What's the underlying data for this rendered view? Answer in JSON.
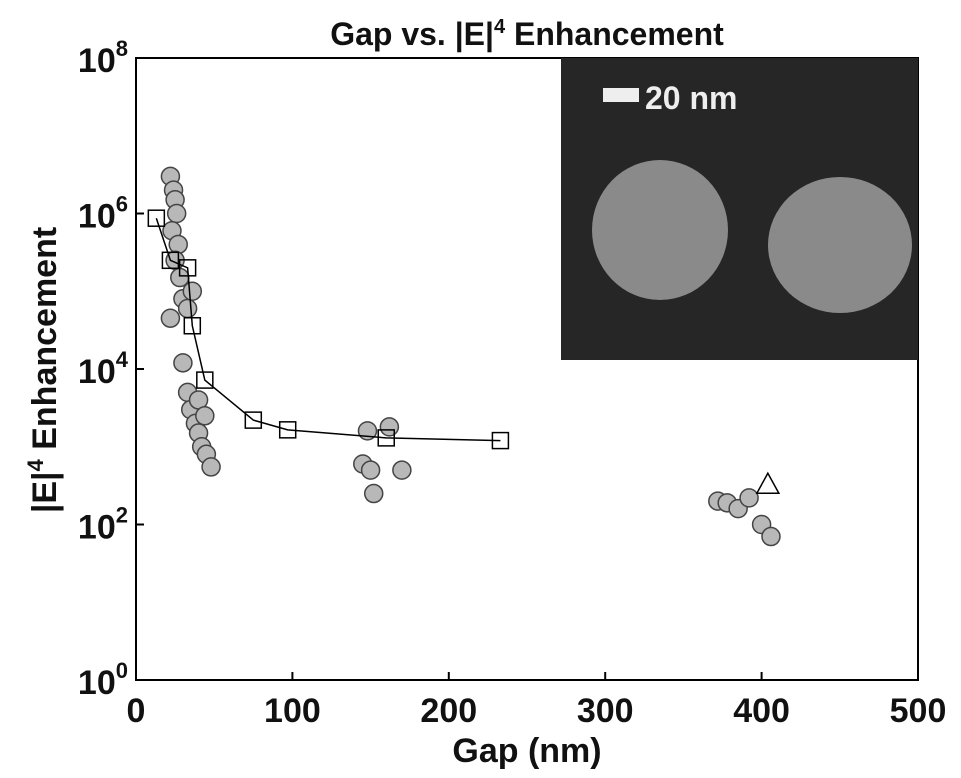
{
  "chart_data": {
    "type": "scatter",
    "title": {
      "main": "Gap vs. |E|",
      "sup": "4",
      "rest": " Enhancement"
    },
    "xlabel": "Gap (nm)",
    "ylabel": {
      "main": "|E|",
      "sup": "4",
      "rest": " Enhancement"
    },
    "annotation": "20 nm",
    "xlim": [
      0,
      500
    ],
    "xticks": [
      0,
      100,
      200,
      300,
      400,
      500
    ],
    "ylim": [
      1,
      100000000
    ],
    "log_y": true,
    "yticks": [
      {
        "value": 1,
        "label": "10^0"
      },
      {
        "value": 100,
        "label": "10^2"
      },
      {
        "value": 10000,
        "label": "10^4"
      },
      {
        "value": 1000000,
        "label": "10^6"
      },
      {
        "value": 100000000,
        "label": "10^8"
      }
    ],
    "series": [
      {
        "marker": "circle",
        "color": "#b8b8b8",
        "line": false,
        "x": [
          22,
          24,
          25,
          26,
          23,
          27,
          25,
          28,
          30,
          33,
          36,
          22,
          30,
          33,
          35,
          38,
          40,
          42,
          45,
          48,
          40,
          44,
          145,
          148,
          150,
          152,
          162,
          170,
          372,
          378,
          385,
          392,
          400,
          406
        ],
        "values": [
          3000000,
          2000000,
          1500000,
          1000000,
          600000,
          400000,
          250000,
          150000,
          80000,
          60000,
          100000,
          45000,
          12000,
          5000,
          3000,
          2000,
          1500,
          1000,
          800,
          550,
          4000,
          2500,
          600,
          1600,
          500,
          250,
          1800,
          500,
          200,
          190,
          160,
          220,
          100,
          70
        ]
      },
      {
        "marker": "square",
        "color": "#000000",
        "line": true,
        "x": [
          13,
          22,
          33,
          36,
          44,
          75,
          97,
          160,
          233
        ],
        "values": [
          870000,
          250000,
          200000,
          36000,
          7200,
          2200,
          1650,
          1300,
          1200
        ]
      },
      {
        "marker": "triangle",
        "color": "#000000",
        "line": false,
        "x": [
          404
        ],
        "values": [
          320
        ]
      }
    ]
  }
}
